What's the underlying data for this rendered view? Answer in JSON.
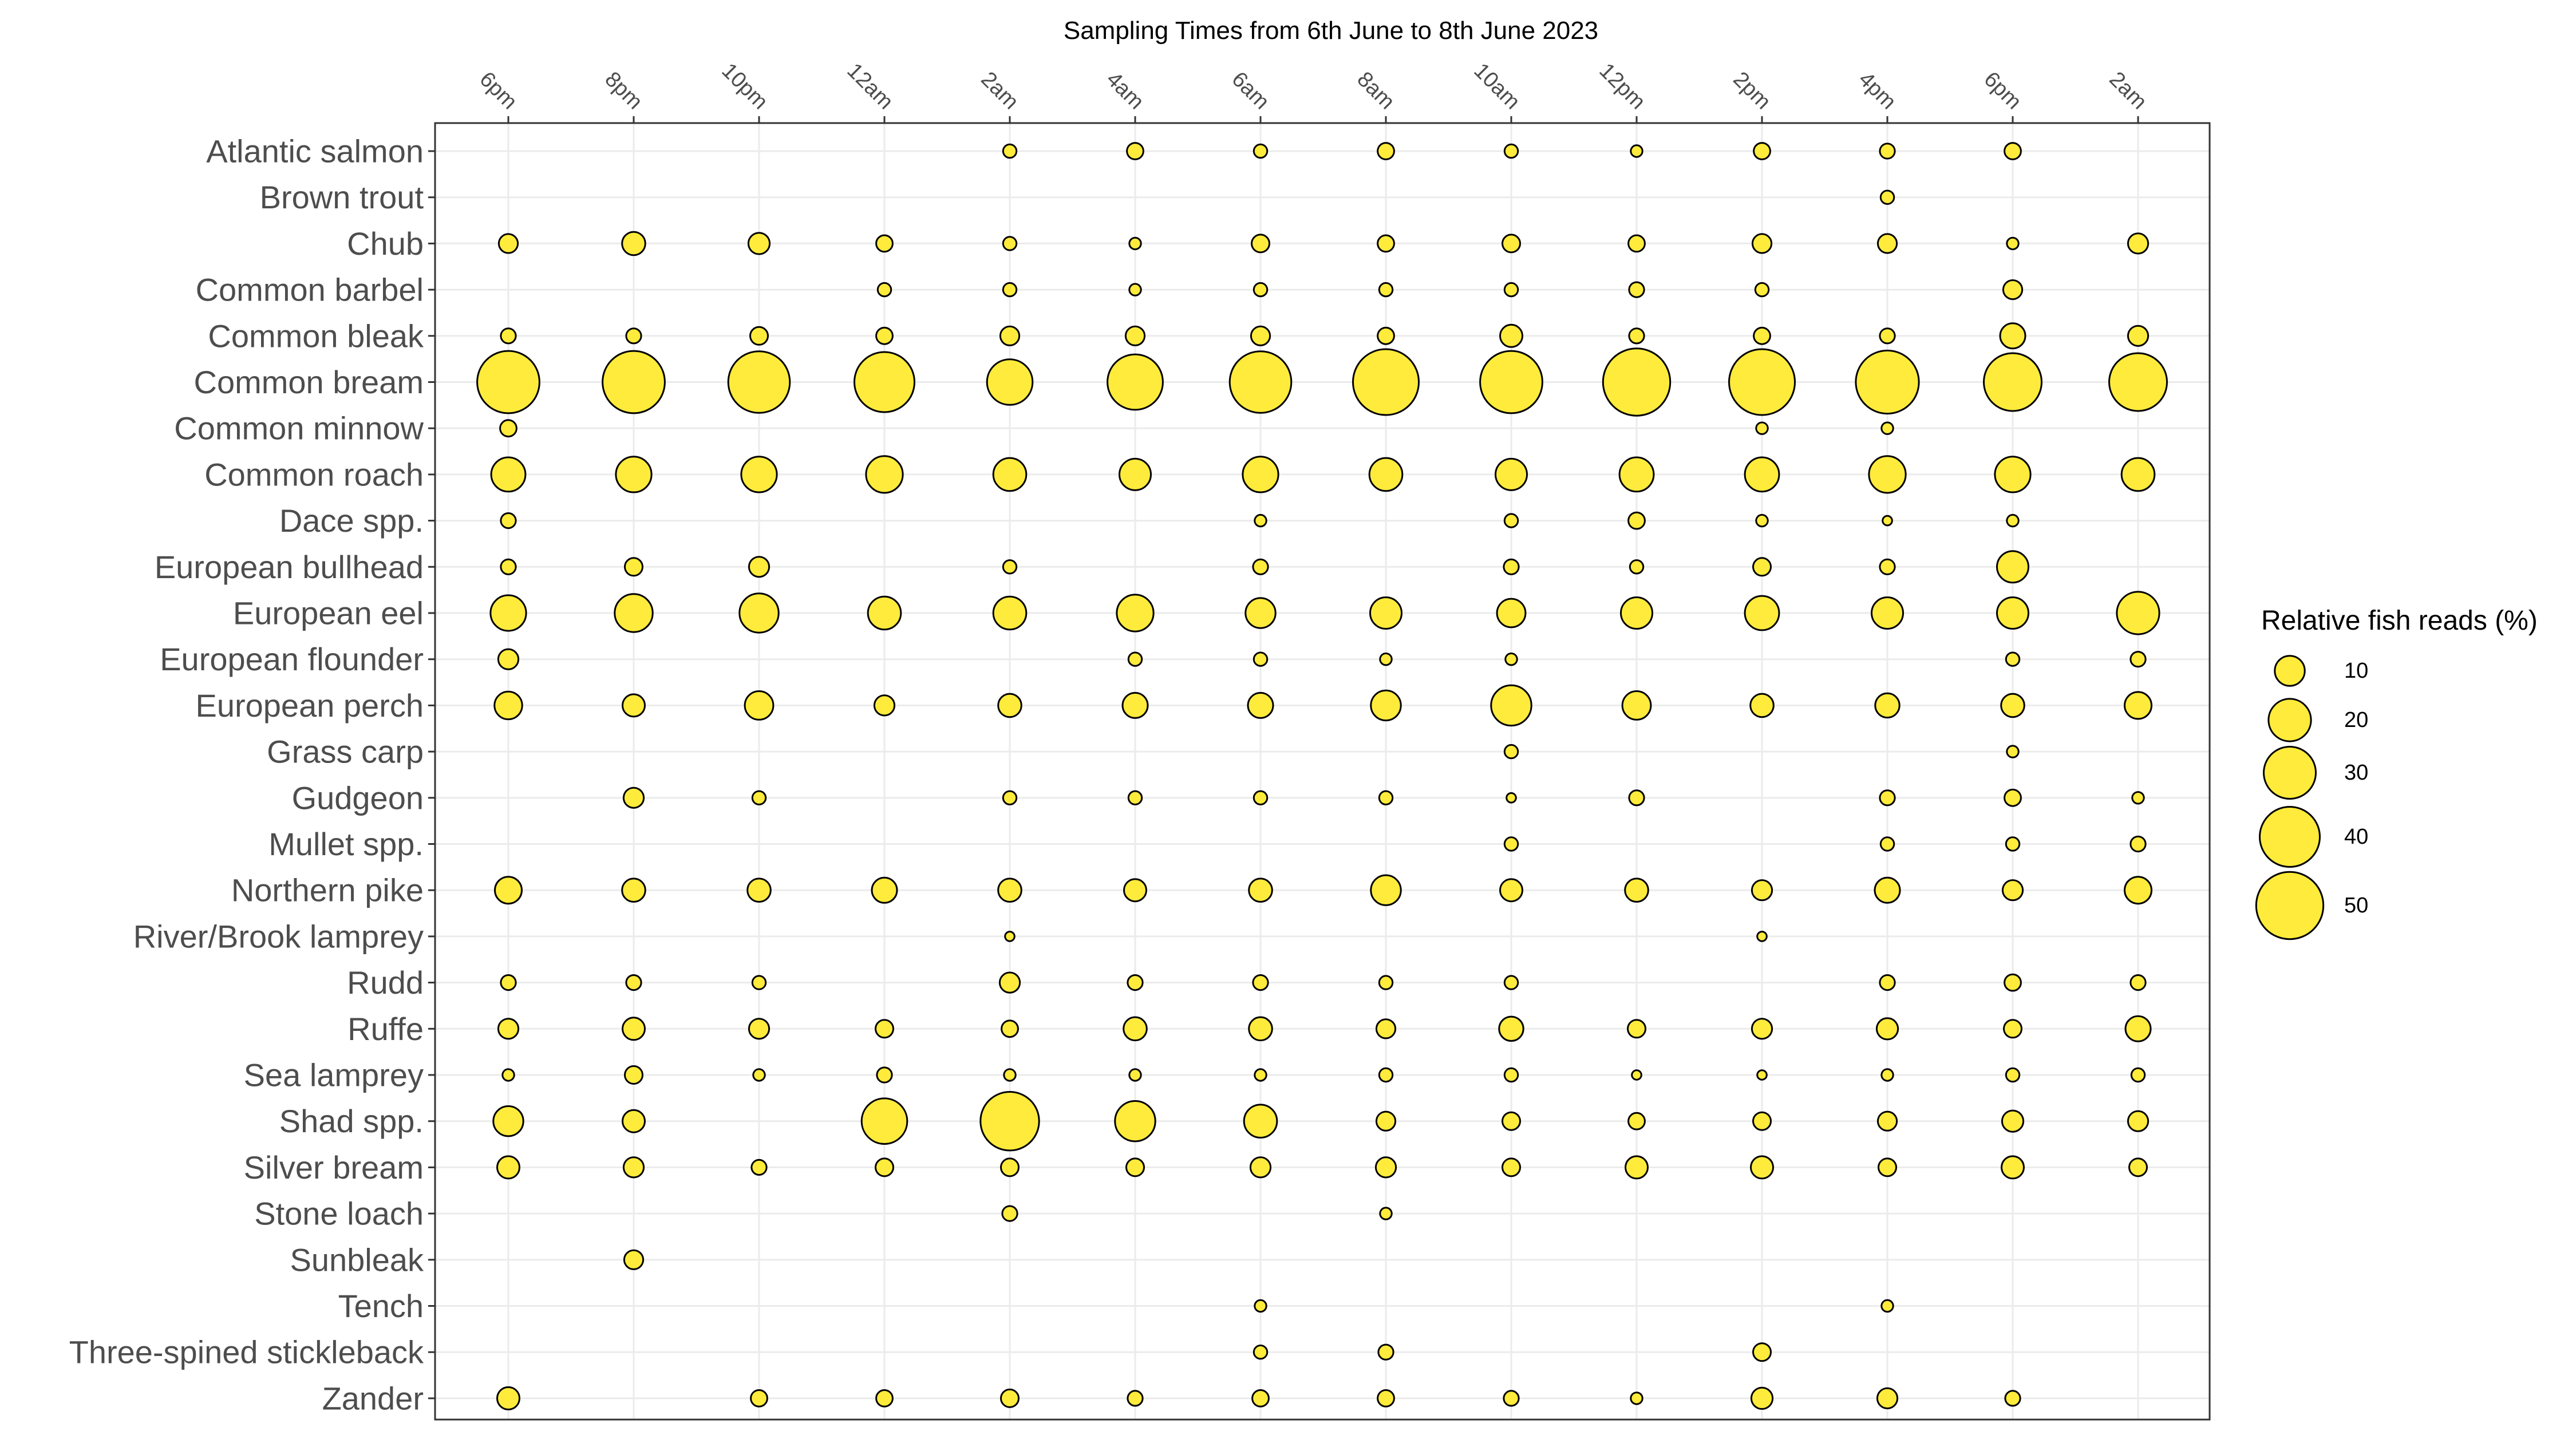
{
  "chart_data": {
    "type": "scatter",
    "title": "Sampling Times from 6th June to 8th June 2023",
    "x_ticks": [
      "6pm",
      "8pm",
      "10pm",
      "12am",
      "2am",
      "4am",
      "6am",
      "8am",
      "10am",
      "12pm",
      "2pm",
      "4pm",
      "6pm",
      "2am"
    ],
    "species": [
      "Atlantic salmon",
      "Brown trout",
      "Chub",
      "Common barbel",
      "Common bleak",
      "Common bream",
      "Common minnow",
      "Common roach",
      "Dace spp.",
      "European bullhead",
      "European eel",
      "European flounder",
      "European perch",
      "Grass carp",
      "Gudgeon",
      "Mullet spp.",
      "Northern pike",
      "River/Brook lamprey",
      "Rudd",
      "Ruffe",
      "Sea lamprey",
      "Shad spp.",
      "Silver bream",
      "Stone loach",
      "Sunbleak",
      "Tench",
      "Three-spined stickleback",
      "Zander"
    ],
    "values": [
      [
        null,
        null,
        null,
        null,
        2,
        3,
        2,
        3,
        2,
        1.5,
        3,
        2.5,
        3,
        null
      ],
      [
        null,
        null,
        null,
        null,
        null,
        null,
        null,
        null,
        null,
        null,
        null,
        2,
        null,
        null
      ],
      [
        4,
        6,
        5,
        3,
        2,
        1.5,
        3.5,
        3,
        3.5,
        3,
        4,
        4,
        1.5,
        4.5
      ],
      [
        null,
        null,
        null,
        2,
        2,
        1.5,
        2,
        2,
        2,
        2.5,
        2,
        null,
        4,
        null
      ],
      [
        2.5,
        2.5,
        3.5,
        3,
        4,
        4,
        4,
        3,
        5.5,
        2.5,
        3,
        2.5,
        7,
        4.5
      ],
      [
        43,
        43,
        42,
        40,
        23,
        34,
        42,
        48,
        43,
        50,
        48,
        44,
        37,
        37
      ],
      [
        3,
        null,
        null,
        null,
        null,
        null,
        null,
        null,
        null,
        null,
        1.5,
        1.5,
        null,
        null
      ],
      [
        13,
        14,
        14,
        15,
        12,
        11,
        14,
        12,
        11,
        13,
        13,
        15,
        14,
        12
      ],
      [
        2.5,
        null,
        null,
        null,
        null,
        null,
        1.5,
        null,
        2,
        3,
        1.5,
        1,
        1.5,
        null
      ],
      [
        2.5,
        3.5,
        4.5,
        null,
        2,
        null,
        2.5,
        null,
        2.5,
        2,
        3.5,
        2.5,
        11,
        null
      ],
      [
        14,
        16,
        17,
        12,
        12,
        15,
        10,
        11,
        9,
        11,
        13,
        11,
        11,
        20
      ],
      [
        4.5,
        null,
        null,
        null,
        null,
        2,
        2,
        1.5,
        1.5,
        null,
        null,
        null,
        2,
        2.5
      ],
      [
        8.5,
        5.5,
        9,
        4.5,
        6,
        7,
        7,
        10,
        18,
        9,
        6,
        6.5,
        6,
        8
      ],
      [
        null,
        null,
        null,
        null,
        null,
        null,
        null,
        null,
        2,
        null,
        null,
        null,
        1.5,
        null
      ],
      [
        null,
        4.5,
        2,
        null,
        2,
        2,
        2,
        2,
        1,
        2.5,
        null,
        2.5,
        3,
        1.5
      ],
      [
        null,
        null,
        null,
        null,
        null,
        null,
        null,
        null,
        2,
        null,
        null,
        2,
        2,
        2.5
      ],
      [
        8,
        6,
        6,
        7,
        6,
        5.5,
        6,
        10,
        5.5,
        6,
        4.5,
        7,
        4.5,
        8
      ],
      [
        null,
        null,
        null,
        null,
        1,
        null,
        null,
        null,
        null,
        null,
        1,
        null,
        null,
        null
      ],
      [
        2.5,
        2.5,
        2,
        null,
        4.5,
        2.5,
        2.5,
        2,
        2,
        null,
        null,
        2.5,
        3,
        2.5
      ],
      [
        4.5,
        5.5,
        4.5,
        3.5,
        3,
        6,
        6,
        4,
        6.5,
        3.5,
        4.5,
        5,
        3.5,
        7
      ],
      [
        1.5,
        3.5,
        1.5,
        2.5,
        1.5,
        1.5,
        1.5,
        2,
        2,
        1,
        1,
        1.5,
        2,
        2
      ],
      [
        10,
        5.5,
        null,
        23,
        38,
        18,
        12,
        4,
        3.5,
        3,
        3.5,
        4,
        5,
        4.5
      ],
      [
        5.5,
        4.5,
        2.5,
        3.5,
        3.5,
        3.5,
        4.5,
        4.5,
        3.5,
        5.5,
        5.5,
        3.5,
        5.5,
        3.5
      ],
      [
        null,
        null,
        null,
        null,
        2.5,
        null,
        null,
        1.5,
        null,
        null,
        null,
        null,
        null,
        null
      ],
      [
        null,
        4,
        null,
        null,
        null,
        null,
        null,
        null,
        null,
        null,
        null,
        null,
        null,
        null
      ],
      [
        null,
        null,
        null,
        null,
        null,
        null,
        1.5,
        null,
        null,
        null,
        null,
        1.5,
        null,
        null
      ],
      [
        null,
        null,
        null,
        null,
        null,
        null,
        2,
        2.5,
        null,
        null,
        3.5,
        null,
        null,
        null
      ],
      [
        5.5,
        null,
        3,
        3,
        3.5,
        2.5,
        3,
        3,
        2.5,
        1.5,
        5,
        4.5,
        2.5,
        null
      ]
    ],
    "size_legend": {
      "title": "Relative fish reads (%)",
      "values": [
        10,
        20,
        30,
        40,
        50
      ],
      "labels": [
        "10",
        "20",
        "30",
        "40",
        "50"
      ]
    },
    "colors": {
      "fill": "#FFEB3B",
      "stroke": "#000000",
      "grid": "#EBEBEB",
      "panel_border": "#333333"
    },
    "grid": true,
    "legend_position": "right"
  }
}
